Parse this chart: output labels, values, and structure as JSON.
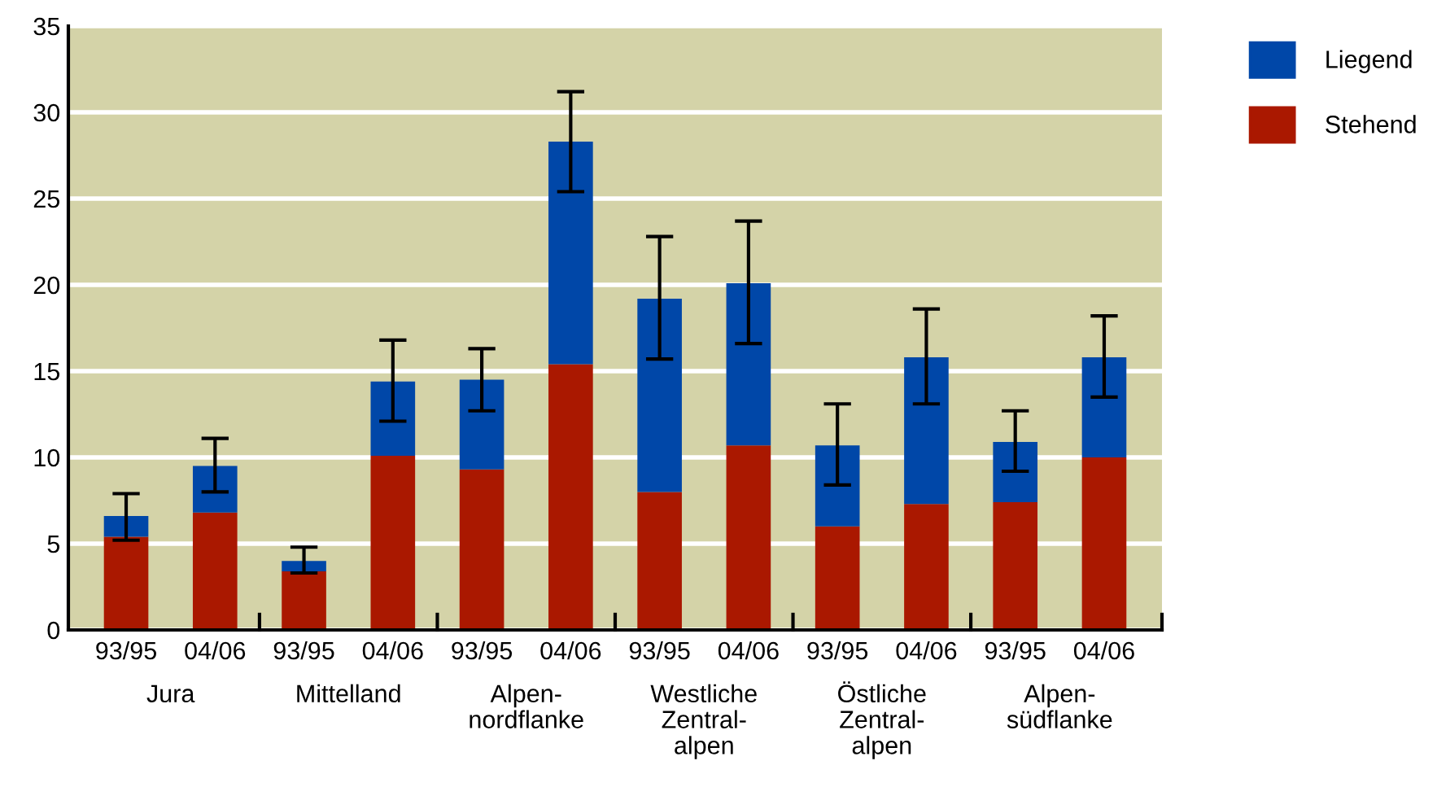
{
  "chart_data": {
    "type": "bar",
    "stacked": true,
    "categories": [
      "93/95",
      "04/06",
      "93/95",
      "04/06",
      "93/95",
      "04/06",
      "93/95",
      "04/06",
      "93/95",
      "04/06",
      "93/95",
      "04/06"
    ],
    "annotations": [
      "Jura",
      "Mittelland",
      "Alpen-\nnordflanke",
      "Westliche\nZentral-\nalpen",
      "Östliche\nZentral-\nalpen",
      "Alpen-\nsüdflanke"
    ],
    "series": [
      {
        "name": "Stehend",
        "color": "#aa1800",
        "values": [
          5.4,
          6.8,
          3.4,
          10.1,
          9.3,
          15.4,
          8.0,
          10.7,
          6.0,
          7.3,
          7.4,
          10.0
        ]
      },
      {
        "name": "Liegend",
        "color": "#0047a8",
        "values": [
          1.2,
          2.7,
          0.6,
          4.3,
          5.2,
          12.9,
          11.2,
          9.4,
          4.7,
          8.5,
          3.5,
          5.8
        ],
        "errors": [
          [
            5.2,
            7.9
          ],
          [
            8.0,
            11.1
          ],
          [
            3.3,
            4.8
          ],
          [
            12.1,
            16.8
          ],
          [
            12.7,
            16.3
          ],
          [
            25.4,
            31.2
          ],
          [
            15.7,
            22.8
          ],
          [
            16.6,
            23.7
          ],
          [
            8.4,
            13.1
          ],
          [
            13.1,
            18.6
          ],
          [
            9.2,
            12.7
          ],
          [
            13.5,
            18.2
          ]
        ]
      }
    ],
    "ylim": [
      0,
      35
    ],
    "yticks": [
      0,
      5,
      10,
      15,
      20,
      25,
      30,
      35
    ],
    "grid": "y",
    "legend": "top right"
  }
}
